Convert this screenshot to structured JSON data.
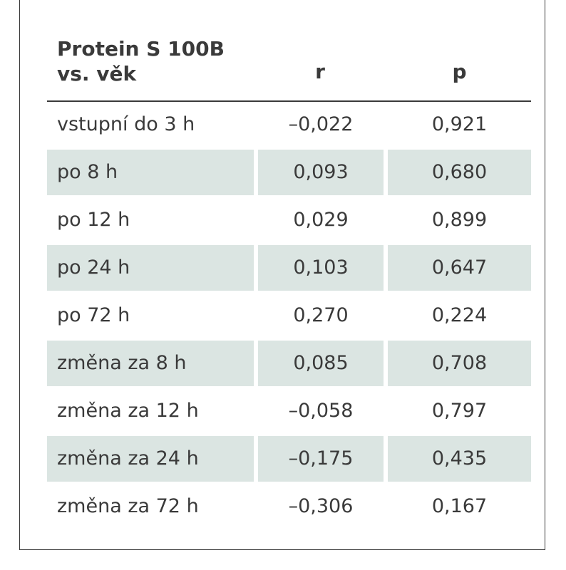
{
  "table": {
    "header": {
      "col1_line1": "Protein S 100B",
      "col1_line2": "vs. věk",
      "col2": "r",
      "col3": "p"
    },
    "rows": [
      {
        "label": "vstupní do 3 h",
        "r": "–0,022",
        "p": "0,921"
      },
      {
        "label": "po 8 h",
        "r": "0,093",
        "p": "0,680"
      },
      {
        "label": "po 12 h",
        "r": "0,029",
        "p": "0,899"
      },
      {
        "label": "po 24 h",
        "r": "0,103",
        "p": "0,647"
      },
      {
        "label": "po 72 h",
        "r": "0,270",
        "p": "0,224"
      },
      {
        "label": "změna za 8 h",
        "r": "0,085",
        "p": "0,708"
      },
      {
        "label": "změna za 12 h",
        "r": "–0,058",
        "p": "0,797"
      },
      {
        "label": "změna za 24 h",
        "r": "–0,175",
        "p": "0,435"
      },
      {
        "label": "změna za 72 h",
        "r": "–0,306",
        "p": "0,167"
      }
    ]
  },
  "colors": {
    "row_shade": "#dbe5e2",
    "text": "#3a3a3a",
    "border": "#3a3a3a"
  }
}
